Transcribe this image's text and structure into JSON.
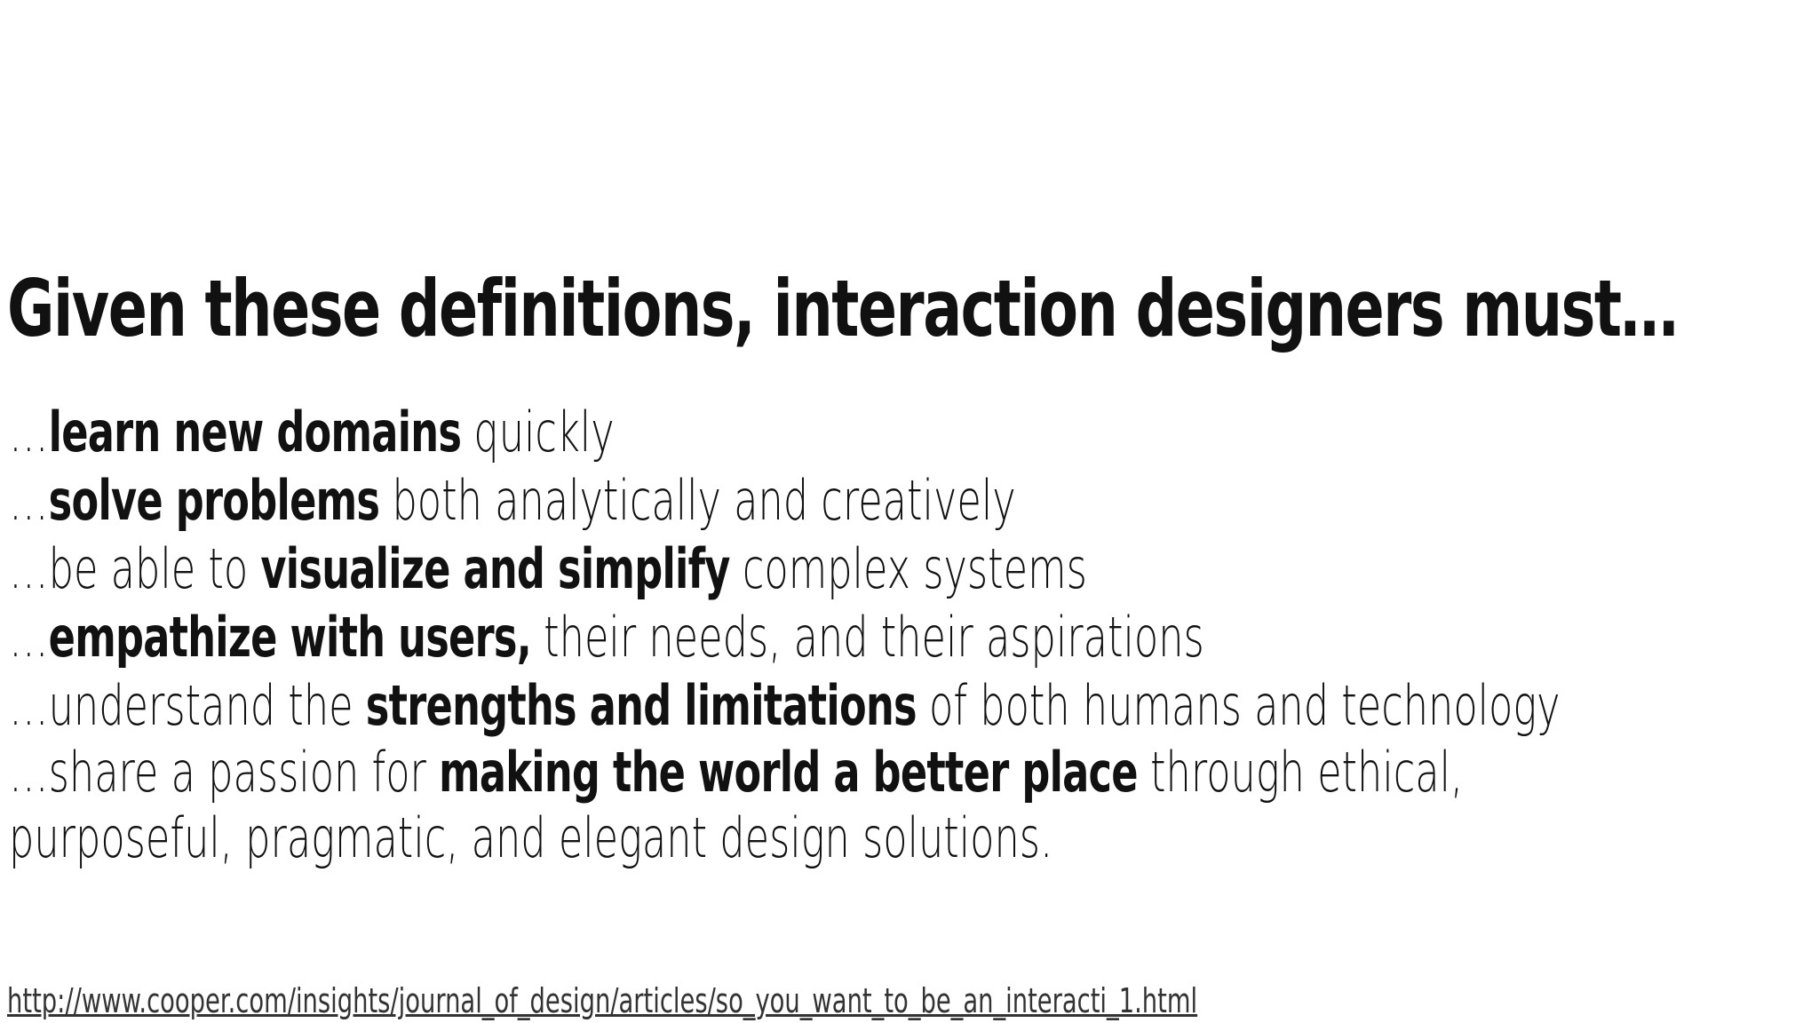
{
  "slide": {
    "title": "Given these definitions, interaction designers must…",
    "items": [
      {
        "pre": "…",
        "bold": "learn new domains",
        "post": " quickly"
      },
      {
        "pre": "…",
        "bold": "solve problems",
        "post": " both analytically and creatively"
      },
      {
        "pre": "…be able to ",
        "bold": "visualize and simplify",
        "post": " complex systems"
      },
      {
        "pre": "…",
        "bold": "empathize with users,",
        "post": " their needs, and their aspirations"
      },
      {
        "pre": "…understand the ",
        "bold": "strengths and limitations",
        "post": " of both humans and technology"
      },
      {
        "pre": "…share a passion for ",
        "bold": "making the world a better place",
        "post": " through ethical, purposeful, pragmatic, and elegant design solutions."
      }
    ],
    "source_url": "http://www.cooper.com/insights/journal_of_design/articles/so_you_want_to_be_an_interacti_1.html"
  },
  "colors": {
    "background": "#ffffff",
    "text": "#111111",
    "link": "#333333"
  }
}
